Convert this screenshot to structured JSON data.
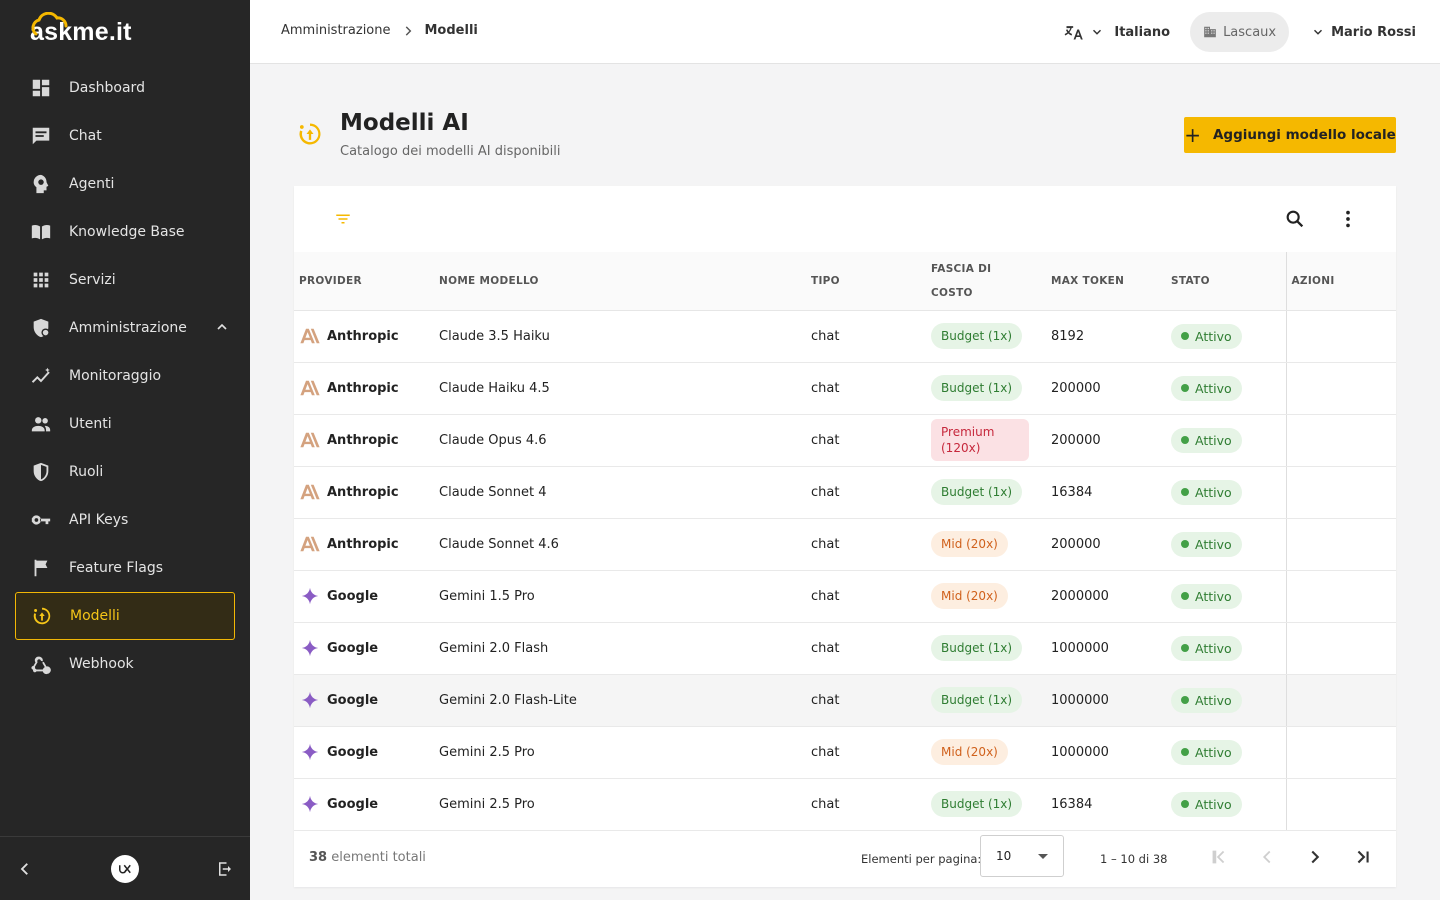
{
  "app": {
    "logo_text": "askme.it"
  },
  "sidebar": {
    "items": [
      {
        "label": "Dashboard",
        "icon": "dashboard-icon"
      },
      {
        "label": "Chat",
        "icon": "chat-icon"
      },
      {
        "label": "Agenti",
        "icon": "agent-icon"
      },
      {
        "label": "Knowledge Base",
        "icon": "book-icon"
      },
      {
        "label": "Servizi",
        "icon": "apps-grid-icon"
      },
      {
        "label": "Amministrazione",
        "icon": "admin-shield-icon"
      },
      {
        "label": "Monitoraggio",
        "icon": "monitoring-icon"
      },
      {
        "label": "Utenti",
        "icon": "users-icon"
      },
      {
        "label": "Ruoli",
        "icon": "shield-icon"
      },
      {
        "label": "API Keys",
        "icon": "key-icon"
      },
      {
        "label": "Feature Flags",
        "icon": "flag-icon"
      },
      {
        "label": "Modelli",
        "icon": "models-icon"
      },
      {
        "label": "Webhook",
        "icon": "webhook-icon"
      }
    ],
    "footer": {
      "collapse_icon": "chevron-left-icon",
      "brand_icon": "ux-logo-icon",
      "logout_icon": "logout-icon"
    }
  },
  "topbar": {
    "breadcrumb": {
      "parent": "Amministrazione",
      "current": "Modelli"
    },
    "language": "Italiano",
    "tenant": "Lascaux",
    "user": "Mario Rossi"
  },
  "header": {
    "title": "Modelli AI",
    "subtitle": "Catalogo dei modelli AI disponibili",
    "add_button": "Aggiungi modello locale"
  },
  "table": {
    "columns": [
      "PROVIDER",
      "NOME MODELLO",
      "TIPO",
      "FASCIA DI COSTO",
      "MAX TOKEN",
      "STATO",
      "AZIONI"
    ],
    "rows": [
      {
        "provider": "Anthropic",
        "name": "Claude 3.5 Haiku",
        "type": "chat",
        "cost": "Budget (1x)",
        "max_token": "8192",
        "status": "Attivo"
      },
      {
        "provider": "Anthropic",
        "name": "Claude Haiku 4.5",
        "type": "chat",
        "cost": "Budget (1x)",
        "max_token": "200000",
        "status": "Attivo"
      },
      {
        "provider": "Anthropic",
        "name": "Claude Opus 4.6",
        "type": "chat",
        "cost": "Premium (120x)",
        "max_token": "200000",
        "status": "Attivo"
      },
      {
        "provider": "Anthropic",
        "name": "Claude Sonnet 4",
        "type": "chat",
        "cost": "Budget (1x)",
        "max_token": "16384",
        "status": "Attivo"
      },
      {
        "provider": "Anthropic",
        "name": "Claude Sonnet 4.6",
        "type": "chat",
        "cost": "Mid (20x)",
        "max_token": "200000",
        "status": "Attivo"
      },
      {
        "provider": "Google",
        "name": "Gemini 1.5 Pro",
        "type": "chat",
        "cost": "Mid (20x)",
        "max_token": "2000000",
        "status": "Attivo"
      },
      {
        "provider": "Google",
        "name": "Gemini 2.0 Flash",
        "type": "chat",
        "cost": "Budget (1x)",
        "max_token": "1000000",
        "status": "Attivo"
      },
      {
        "provider": "Google",
        "name": "Gemini 2.0 Flash-Lite",
        "type": "chat",
        "cost": "Budget (1x)",
        "max_token": "1000000",
        "status": "Attivo"
      },
      {
        "provider": "Google",
        "name": "Gemini 2.5 Pro",
        "type": "chat",
        "cost": "Mid (20x)",
        "max_token": "1000000",
        "status": "Attivo"
      },
      {
        "provider": "Google",
        "name": "Gemini 2.5 Pro",
        "type": "chat",
        "cost": "Budget (1x)",
        "max_token": "16384",
        "status": "Attivo"
      }
    ]
  },
  "footer": {
    "total_count": "38",
    "total_label": "elementi totali",
    "per_page_label": "Elementi per pagina:",
    "per_page_value": "10",
    "range": "1 – 10 di 38"
  },
  "colors": {
    "accent": "#f5b800",
    "sidebar_bg": "#262626",
    "budget": "#2f7d32",
    "mid": "#d0611c",
    "premium": "#c6283c",
    "anthropic": "#d4a27f",
    "google": "#8a5cc4"
  }
}
